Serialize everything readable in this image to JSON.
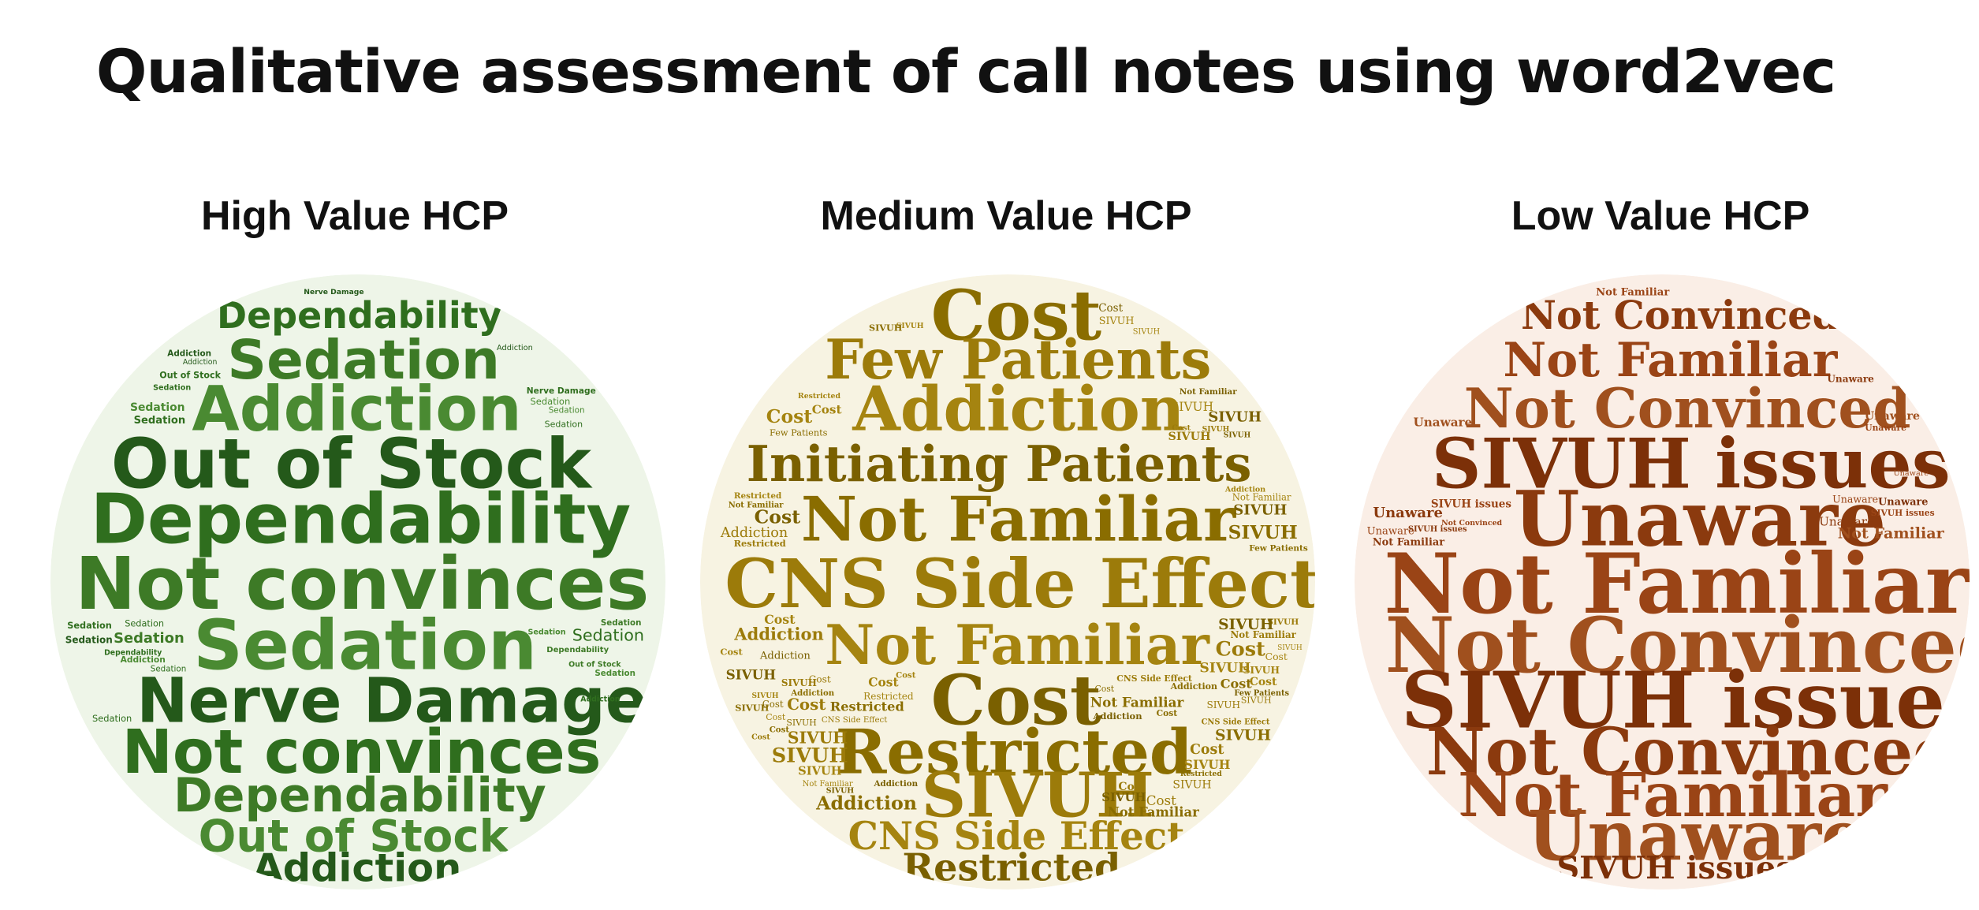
{
  "title": "Qualitative assessment of call notes using word2vec",
  "panels": [
    {
      "key": "high",
      "title": "High Value HCP",
      "colors": {
        "background": "#eef5e8",
        "words": [
          "#2f6e1e",
          "#3d7a26",
          "#4a8a32",
          "#24591a"
        ]
      },
      "font": "sans",
      "terms": [
        "Out of Stock",
        "Not convinces",
        "Dependability",
        "Addiction",
        "Sedation",
        "Nerve Damage"
      ],
      "major_words": [
        {
          "text": "Dependability",
          "weight": 3
        },
        {
          "text": "Sedation",
          "weight": 5
        },
        {
          "text": "Addiction",
          "weight": 6
        },
        {
          "text": "Out of Stock",
          "weight": 7
        },
        {
          "text": "Dependability",
          "weight": 7
        },
        {
          "text": "Not convinces",
          "weight": 10
        },
        {
          "text": "Sedation",
          "weight": 7
        },
        {
          "text": "Nerve Damage",
          "weight": 6
        },
        {
          "text": "Not convinces",
          "weight": 7
        },
        {
          "text": "Dependability",
          "weight": 4
        },
        {
          "text": "Out of Stock",
          "weight": 4
        },
        {
          "text": "Addiction",
          "weight": 3
        }
      ]
    },
    {
      "key": "medium",
      "title": "Medium Value HCP",
      "colors": {
        "background": "#f7f3e2",
        "words": [
          "#8a6d00",
          "#9c7b0a",
          "#a58410",
          "#7a6000"
        ]
      },
      "font": "serif",
      "terms": [
        "Cost",
        "Few Patients",
        "Addiction",
        "Initiating Patients",
        "Not Familiar",
        "CNS Side Effect",
        "Restricted",
        "SIVUH"
      ],
      "major_words": [
        {
          "text": "Cost",
          "weight": 7
        },
        {
          "text": "Few Patients",
          "weight": 5
        },
        {
          "text": "Addiction",
          "weight": 6
        },
        {
          "text": "Initiating Patients",
          "weight": 5
        },
        {
          "text": "Not Familiar",
          "weight": 6
        },
        {
          "text": "CNS Side Effect",
          "weight": 8
        },
        {
          "text": "Not Familiar",
          "weight": 5
        },
        {
          "text": "Cost",
          "weight": 7
        },
        {
          "text": "Restricted",
          "weight": 6
        },
        {
          "text": "SIVUH",
          "weight": 6
        },
        {
          "text": "CNS Side Effect",
          "weight": 4
        },
        {
          "text": "Restricted",
          "weight": 4
        }
      ]
    },
    {
      "key": "low",
      "title": "Low Value HCP",
      "colors": {
        "background": "#faeee6",
        "words": [
          "#8b3a0e",
          "#9a4416",
          "#a0501e",
          "#7c3008"
        ]
      },
      "font": "serif",
      "terms": [
        "Not Convinced",
        "Not Familiar",
        "SIVUH issues",
        "Unaware"
      ],
      "major_words": [
        {
          "text": "Not Convinced",
          "weight": 3
        },
        {
          "text": "Not Familiar",
          "weight": 4
        },
        {
          "text": "Not Convinced",
          "weight": 5
        },
        {
          "text": "SIVUH issues",
          "weight": 7
        },
        {
          "text": "Unaware",
          "weight": 8
        },
        {
          "text": "Not Familiar",
          "weight": 9
        },
        {
          "text": "Not Convinced",
          "weight": 10
        },
        {
          "text": "SIVUH issues",
          "weight": 9
        },
        {
          "text": "Not Convinced",
          "weight": 7
        },
        {
          "text": "Not Familiar",
          "weight": 7
        },
        {
          "text": "Unaware",
          "weight": 7
        },
        {
          "text": "SIVUH issues",
          "weight": 4
        }
      ]
    }
  ]
}
